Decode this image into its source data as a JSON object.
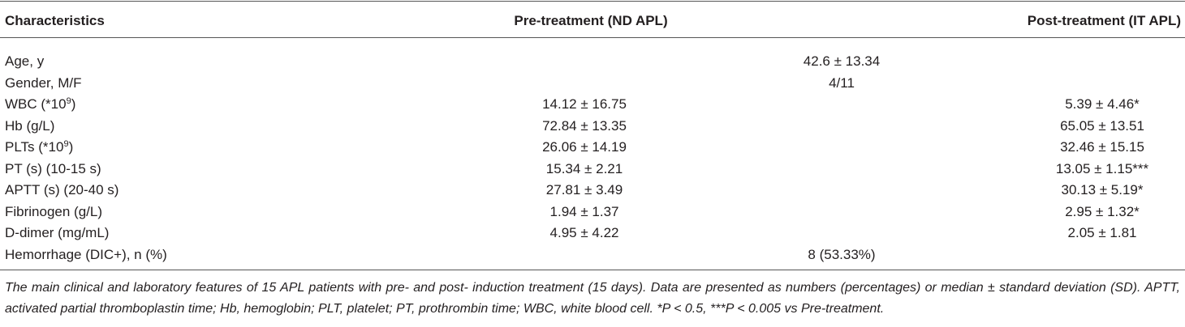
{
  "table": {
    "header": [
      "Characteristics",
      "Pre-treatment (ND APL)",
      "Post-treatment (IT APL)"
    ],
    "rows": [
      {
        "label": [
          "Age, y"
        ],
        "both": "42.6 ± 13.34"
      },
      {
        "label": [
          "Gender, M/F"
        ],
        "both": "4/11"
      },
      {
        "label": [
          "WBC (*10",
          "9",
          ")"
        ],
        "pre": "14.12 ± 16.75",
        "post": "5.39 ± 4.46*"
      },
      {
        "label": [
          "Hb (g/L)"
        ],
        "pre": "72.84 ± 13.35",
        "post": "65.05 ± 13.51"
      },
      {
        "label": [
          "PLTs (*10",
          "9",
          ")"
        ],
        "pre": "26.06 ± 14.19",
        "post": "32.46 ± 15.15"
      },
      {
        "label": [
          "PT (s) (10-15 s)"
        ],
        "pre": "15.34 ± 2.21",
        "post": "13.05 ± 1.15***"
      },
      {
        "label": [
          "APTT (s) (20-40 s)"
        ],
        "pre": "27.81 ± 3.49",
        "post": "30.13 ± 5.19*"
      },
      {
        "label": [
          "Fibrinogen (g/L)"
        ],
        "pre": "1.94 ± 1.37",
        "post": "2.95 ± 1.32*"
      },
      {
        "label": [
          "D-dimer (mg/mL)"
        ],
        "pre": "4.95 ± 4.22",
        "post": "2.05 ± 1.81"
      },
      {
        "label": [
          "Hemorrhage (DIC+), n (%)"
        ],
        "both": "8 (53.33%)"
      }
    ]
  },
  "footnote": "The main clinical and laboratory features of 15 APL patients with pre- and post- induction treatment (15 days). Data are presented as numbers (percentages) or median ± standard deviation (SD). APTT, activated partial thromboplastin time; Hb, hemoglobin; PLT, platelet; PT, prothrombin time; WBC, white blood cell. *P < 0.5, ***P < 0.005 vs Pre-treatment."
}
